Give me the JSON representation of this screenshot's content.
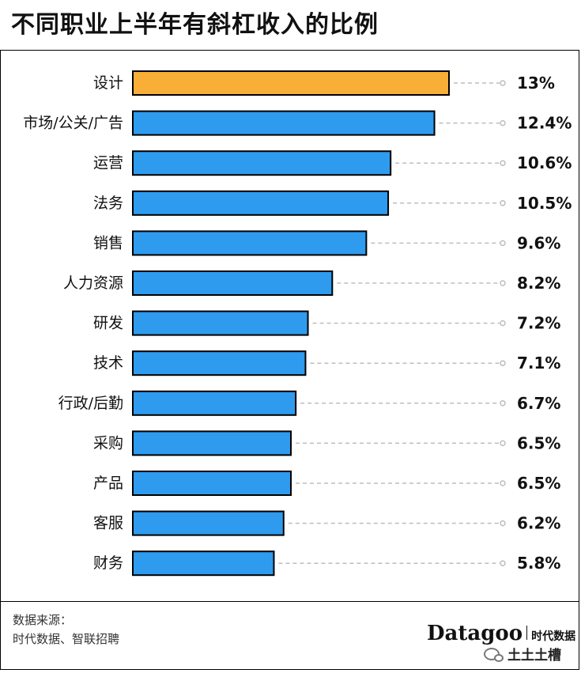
{
  "title": "不同职业上半年有斜杠收入的比例",
  "source": {
    "line1": "数据来源：",
    "line2": "时代数据、智联招聘"
  },
  "brand": {
    "name_en": "Datagoo",
    "name_cn": "时代数据"
  },
  "watermark": {
    "text": "土土土槽",
    "icon": "wechat-icon"
  },
  "colors": {
    "highlight": "#F9AE37",
    "bar": "#2E9BEF",
    "bar_stroke": "#000000",
    "dash": "#BDBDBD"
  },
  "chart_data": {
    "type": "bar",
    "orientation": "horizontal",
    "title": "不同职业上半年有斜杠收入的比例",
    "categories": [
      "设计",
      "市场/公关/广告",
      "运营",
      "法务",
      "销售",
      "人力资源",
      "研发",
      "技术",
      "行政/后勤",
      "采购",
      "产品",
      "客服",
      "财务"
    ],
    "values": [
      13,
      12.4,
      10.6,
      10.5,
      9.6,
      8.2,
      7.2,
      7.1,
      6.7,
      6.5,
      6.5,
      6.2,
      5.8
    ],
    "value_labels": [
      "13%",
      "12.4%",
      "10.6%",
      "10.5%",
      "9.6%",
      "8.2%",
      "7.2%",
      "7.1%",
      "6.7%",
      "6.5%",
      "6.5%",
      "6.2%",
      "5.8%"
    ],
    "highlight_index": 0,
    "unit": "%",
    "xlim": [
      0,
      13
    ]
  }
}
